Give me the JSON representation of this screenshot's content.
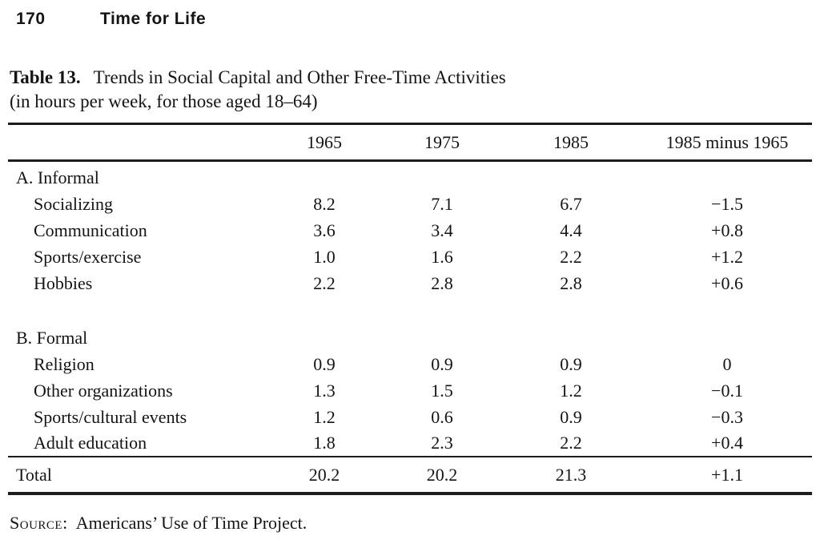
{
  "page": {
    "page_number": "170",
    "running_title": "Time for Life"
  },
  "table": {
    "caption_label": "Table 13.",
    "caption_title": "Trends in Social Capital and Other Free-Time Activities",
    "caption_subtitle": "(in hours per week, for those aged 18–64)",
    "columns": [
      "1965",
      "1975",
      "1985",
      "1985 minus 1965"
    ],
    "sections": [
      {
        "heading": "A.  Informal",
        "rows": [
          {
            "label": "Socializing",
            "values": [
              "8.2",
              "7.1",
              "6.7",
              "−1.5"
            ]
          },
          {
            "label": "Communication",
            "values": [
              "3.6",
              "3.4",
              "4.4",
              "+0.8"
            ]
          },
          {
            "label": "Sports/exercise",
            "values": [
              "1.0",
              "1.6",
              "2.2",
              "+1.2"
            ]
          },
          {
            "label": "Hobbies",
            "values": [
              "2.2",
              "2.8",
              "2.8",
              "+0.6"
            ]
          }
        ]
      },
      {
        "heading": "B.  Formal",
        "rows": [
          {
            "label": "Religion",
            "values": [
              "0.9",
              "0.9",
              "0.9",
              "0"
            ]
          },
          {
            "label": "Other organizations",
            "values": [
              "1.3",
              "1.5",
              "1.2",
              "−0.1"
            ]
          },
          {
            "label": "Sports/cultural events",
            "values": [
              "1.2",
              "0.6",
              "0.9",
              "−0.3"
            ]
          },
          {
            "label": "Adult education",
            "values": [
              "1.8",
              "2.3",
              "2.2",
              "+0.4"
            ]
          }
        ]
      }
    ],
    "total": {
      "label": "Total",
      "values": [
        "20.2",
        "20.2",
        "21.3",
        "+1.1"
      ]
    },
    "source_label": "Source:",
    "source_text": "Americans’ Use of Time Project."
  }
}
